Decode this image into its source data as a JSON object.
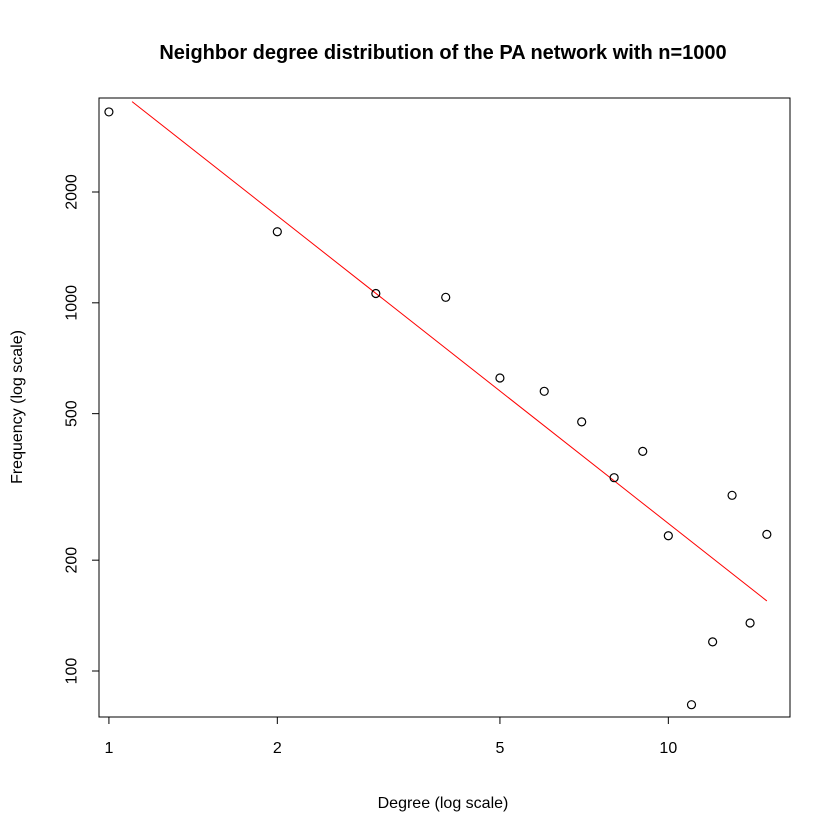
{
  "chart_data": {
    "type": "scatter",
    "title": "Neighbor degree distribution of the PA network with n=1000",
    "xlabel": "Degree (log scale)",
    "ylabel": "Frequency (log scale)",
    "x_scale": "log",
    "y_scale": "log",
    "xlim": [
      0.96,
      16.5
    ],
    "ylim": [
      75,
      3600
    ],
    "x_ticks": [
      {
        "value": 1,
        "label": "1"
      },
      {
        "value": 2,
        "label": "2"
      },
      {
        "value": 5,
        "label": "5"
      },
      {
        "value": 10,
        "label": "10"
      }
    ],
    "y_ticks": [
      {
        "value": 100,
        "label": "100"
      },
      {
        "value": 200,
        "label": "200"
      },
      {
        "value": 500,
        "label": "500"
      },
      {
        "value": 1000,
        "label": "1000"
      },
      {
        "value": 2000,
        "label": "2000"
      }
    ],
    "grid": false,
    "points": {
      "x": [
        1,
        2,
        3,
        4,
        5,
        6,
        7,
        8,
        9,
        10,
        11,
        12,
        13,
        14,
        15
      ],
      "y": [
        3300,
        1560,
        1060,
        1035,
        625,
        575,
        475,
        335,
        395,
        233,
        81,
        120,
        300,
        135,
        235
      ],
      "marker": "open-circle",
      "color": "#000000"
    },
    "fit_line": {
      "color": "#ff0000",
      "x": [
        1.1,
        15
      ],
      "y": [
        3520,
        155
      ]
    }
  }
}
